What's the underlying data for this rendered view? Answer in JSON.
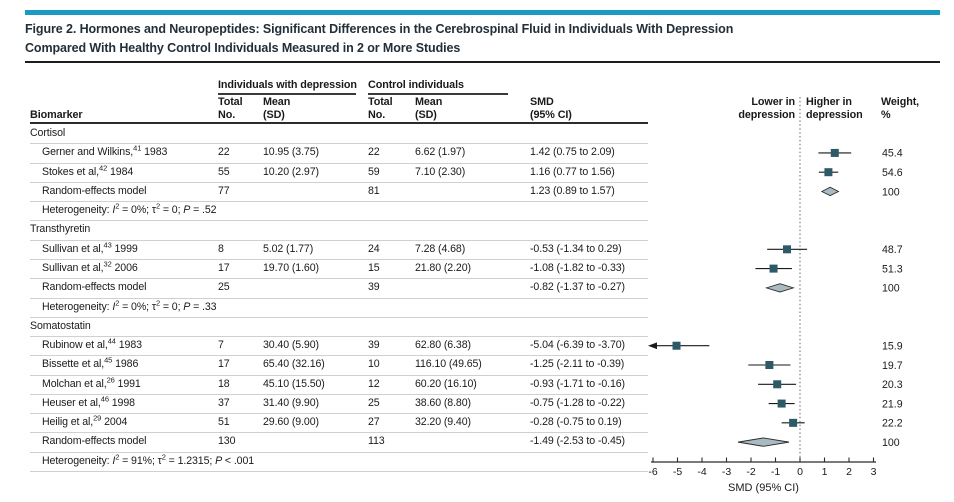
{
  "header": {
    "title": "Figure 2. Hormones and Neuropeptides: Significant Differences in the Cerebrospinal Fluid in Individuals With Depression\nCompared With Healthy Control Individuals Measured in 2 or More Studies"
  },
  "table_headers": {
    "group_depression": "Individuals with depression",
    "group_control": "Control individuals",
    "biomarker": "Biomarker",
    "total_no": "Total\nNo.",
    "mean_sd": "Mean\n(SD)",
    "smd": "SMD\n(95% CI)"
  },
  "plot_headers": {
    "lower": "Lower in\ndepression",
    "higher": "Higher in\ndepression",
    "weight": "Weight,\n%"
  },
  "colors": {
    "accent": "#1b9ac1",
    "marker": "#2e5966",
    "diamond_fill": "#a9bac2",
    "diamond_stroke": "#2b2b2b",
    "ci_line": "#1a1a1a",
    "axis": "#2b2b2b",
    "zero_line": "#666666"
  },
  "chart_data": {
    "type": "forest",
    "xlabel": "SMD (95% CI)",
    "xlim": [
      -6,
      3
    ],
    "ticks": [
      "-6",
      "-5",
      "-4",
      "-3",
      "-2",
      "-1",
      "0",
      "1",
      "2",
      "3"
    ],
    "zero_line": 0,
    "re_label": "Random-effects model",
    "sections": [
      {
        "name": "Cortisol",
        "studies": [
          {
            "segs": [
              {
                "t": "Gerner and Wilkins,"
              },
              {
                "t": "41",
                "sup": true
              },
              {
                "t": " 1983"
              }
            ],
            "n1": "22",
            "mean1": "10.95 (3.75)",
            "n2": "22",
            "mean2": "6.62 (1.97)",
            "smd_text": "1.42 (0.75 to 2.09)",
            "smd": 1.42,
            "lo": 0.75,
            "hi": 2.09,
            "weight": "45.4"
          },
          {
            "segs": [
              {
                "t": "Stokes et al,"
              },
              {
                "t": "42",
                "sup": true
              },
              {
                "t": " 1984"
              }
            ],
            "n1": "55",
            "mean1": "10.20 (2.97)",
            "n2": "59",
            "mean2": "7.10 (2.30)",
            "smd_text": "1.16 (0.77 to 1.56)",
            "smd": 1.16,
            "lo": 0.77,
            "hi": 1.56,
            "weight": "54.6"
          }
        ],
        "summary": {
          "n1": "77",
          "n2": "81",
          "smd_text": "1.23 (0.89 to 1.57)",
          "smd": 1.23,
          "lo": 0.89,
          "hi": 1.57,
          "weight": "100"
        },
        "heterogeneity": [
          {
            "t": "Heterogeneity: "
          },
          {
            "t": "I",
            "i": true
          },
          {
            "t": "2",
            "sup": true
          },
          {
            "t": " = 0%; τ"
          },
          {
            "t": "2",
            "sup": true
          },
          {
            "t": " = 0; "
          },
          {
            "t": "P",
            "i": true
          },
          {
            "t": " = .52"
          }
        ]
      },
      {
        "name": "Transthyretin",
        "studies": [
          {
            "segs": [
              {
                "t": "Sullivan et al,"
              },
              {
                "t": "43",
                "sup": true
              },
              {
                "t": " 1999"
              }
            ],
            "n1": "8",
            "mean1": "5.02 (1.77)",
            "n2": "24",
            "mean2": "7.28 (4.68)",
            "smd_text": "-0.53 (-1.34 to 0.29)",
            "smd": -0.53,
            "lo": -1.34,
            "hi": 0.29,
            "weight": "48.7"
          },
          {
            "segs": [
              {
                "t": "Sullivan et al,"
              },
              {
                "t": "32",
                "sup": true
              },
              {
                "t": " 2006"
              }
            ],
            "n1": "17",
            "mean1": "19.70 (1.60)",
            "n2": "15",
            "mean2": "21.80 (2.20)",
            "smd_text": "-1.08 (-1.82 to -0.33)",
            "smd": -1.08,
            "lo": -1.82,
            "hi": -0.33,
            "weight": "51.3"
          }
        ],
        "summary": {
          "n1": "25",
          "n2": "39",
          "smd_text": "-0.82 (-1.37 to -0.27)",
          "smd": -0.82,
          "lo": -1.37,
          "hi": -0.27,
          "weight": "100"
        },
        "heterogeneity": [
          {
            "t": "Heterogeneity: "
          },
          {
            "t": "I",
            "i": true
          },
          {
            "t": "2",
            "sup": true
          },
          {
            "t": " = 0%; τ"
          },
          {
            "t": "2",
            "sup": true
          },
          {
            "t": " = 0; "
          },
          {
            "t": "P",
            "i": true
          },
          {
            "t": " = .33"
          }
        ]
      },
      {
        "name": "Somatostatin",
        "studies": [
          {
            "segs": [
              {
                "t": "Rubinow et al,"
              },
              {
                "t": "44",
                "sup": true
              },
              {
                "t": " 1983"
              }
            ],
            "n1": "7",
            "mean1": "30.40 (5.90)",
            "n2": "39",
            "mean2": "62.80 (6.38)",
            "smd_text": "-5.04 (-6.39 to -3.70)",
            "smd": -5.04,
            "lo": -6.39,
            "hi": -3.7,
            "weight": "15.9"
          },
          {
            "segs": [
              {
                "t": "Bissette et al,"
              },
              {
                "t": "45",
                "sup": true
              },
              {
                "t": " 1986"
              }
            ],
            "n1": "17",
            "mean1": "65.40 (32.16)",
            "n2": "10",
            "mean2": "116.10 (49.65)",
            "smd_text": "-1.25 (-2.11 to -0.39)",
            "smd": -1.25,
            "lo": -2.11,
            "hi": -0.39,
            "weight": "19.7"
          },
          {
            "segs": [
              {
                "t": "Molchan et al,"
              },
              {
                "t": "26",
                "sup": true
              },
              {
                "t": " 1991"
              }
            ],
            "n1": "18",
            "mean1": "45.10 (15.50)",
            "n2": "12",
            "mean2": "60.20 (16.10)",
            "smd_text": "-0.93 (-1.71 to -0.16)",
            "smd": -0.93,
            "lo": -1.71,
            "hi": -0.16,
            "weight": "20.3"
          },
          {
            "segs": [
              {
                "t": "Heuser et al,"
              },
              {
                "t": "46",
                "sup": true
              },
              {
                "t": " 1998"
              }
            ],
            "n1": "37",
            "mean1": "31.40 (9.90)",
            "n2": "25",
            "mean2": "38.60 (8.80)",
            "smd_text": "-0.75 (-1.28 to -0.22)",
            "smd": -0.75,
            "lo": -1.28,
            "hi": -0.22,
            "weight": "21.9"
          },
          {
            "segs": [
              {
                "t": "Heilig et al,"
              },
              {
                "t": "29",
                "sup": true
              },
              {
                "t": " 2004"
              }
            ],
            "n1": "51",
            "mean1": "29.60 (9.00)",
            "n2": "27",
            "mean2": "32.20 (9.40)",
            "smd_text": "-0.28 (-0.75 to 0.19)",
            "smd": -0.28,
            "lo": -0.75,
            "hi": 0.19,
            "weight": "22.2"
          }
        ],
        "summary": {
          "n1": "130",
          "n2": "113",
          "smd_text": "-1.49 (-2.53 to -0.45)",
          "smd": -1.49,
          "lo": -2.53,
          "hi": -0.45,
          "weight": "100"
        },
        "heterogeneity": [
          {
            "t": "Heterogeneity: "
          },
          {
            "t": "I",
            "i": true
          },
          {
            "t": "2",
            "sup": true
          },
          {
            "t": " = 91%; τ"
          },
          {
            "t": "2",
            "sup": true
          },
          {
            "t": " = 1.2315; "
          },
          {
            "t": "P",
            "i": true
          },
          {
            "t": " < .001"
          }
        ]
      }
    ]
  }
}
